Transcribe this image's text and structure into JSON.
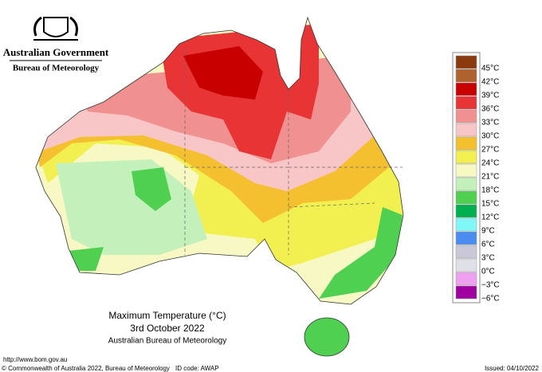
{
  "header": {
    "government": "Australian Government",
    "bureau": "Bureau of Meteorology"
  },
  "legend": [
    {
      "label": "45°C",
      "color": "#8b3a10"
    },
    {
      "label": "42°C",
      "color": "#b0622e"
    },
    {
      "label": "39°C",
      "color": "#c80000"
    },
    {
      "label": "36°C",
      "color": "#e83434"
    },
    {
      "label": "33°C",
      "color": "#f09090"
    },
    {
      "label": "30°C",
      "color": "#f8c6c6"
    },
    {
      "label": "27°C",
      "color": "#f5c030"
    },
    {
      "label": "24°C",
      "color": "#f2f050"
    },
    {
      "label": "21°C",
      "color": "#f8f8c4"
    },
    {
      "label": "18°C",
      "color": "#c4f0bc"
    },
    {
      "label": "15°C",
      "color": "#50d050"
    },
    {
      "label": "12°C",
      "color": "#00b050"
    },
    {
      "label": "9°C",
      "color": "#80f8f8"
    },
    {
      "label": "6°C",
      "color": "#4a8cf0"
    },
    {
      "label": "3°C",
      "color": "#c8c8d8"
    },
    {
      "label": "0°C",
      "color": "#e0e0e8"
    },
    {
      "label": "−3°C",
      "color": "#f0a0f0"
    },
    {
      "label": "−6°C",
      "color": "#a000a0"
    }
  ],
  "map_title": {
    "line1": "Maximum Temperature (°C)",
    "line2": "3rd October 2022",
    "line3": "Australian Bureau of Meteorology"
  },
  "footer": {
    "url": "http://www.bom.gov.au",
    "copyright": "© Commonwealth of Australia 2022, Bureau of Meteorology",
    "id_code": "ID code: AWAP",
    "issued": "Issued: 04/10/2022"
  }
}
